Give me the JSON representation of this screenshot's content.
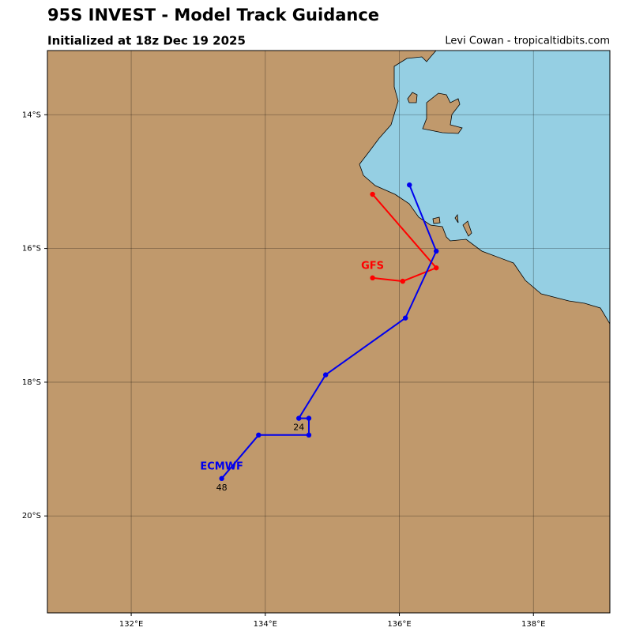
{
  "chart_data": {
    "type": "track",
    "title": "95S INVEST - Model Track Guidance",
    "subtitle": "Initialized at 18z Dec 19 2025",
    "credit": "Levi Cowan - tropicaltidbits.com",
    "xlim": [
      130.75,
      139.14
    ],
    "ylim": [
      -21.45,
      -13.04
    ],
    "xticks": [
      {
        "value": 132,
        "label": "132°E"
      },
      {
        "value": 134,
        "label": "134°E"
      },
      {
        "value": 136,
        "label": "136°E"
      },
      {
        "value": 138,
        "label": "138°E"
      }
    ],
    "yticks": [
      {
        "value": -14,
        "label": "14°S"
      },
      {
        "value": -16,
        "label": "16°S"
      },
      {
        "value": -18,
        "label": "18°S"
      },
      {
        "value": -20,
        "label": "20°S"
      }
    ],
    "grid": true,
    "series": [
      {
        "name": "GFS",
        "color": "#ff0000",
        "x": [
          135.6,
          136.55,
          136.05,
          135.6
        ],
        "values": [
          -15.19,
          -16.29,
          -16.49,
          -16.44
        ]
      },
      {
        "name": "ECMWF",
        "color": "#0000ee",
        "x": [
          136.15,
          136.55,
          136.09,
          134.9,
          134.5,
          134.65,
          134.65,
          133.9,
          133.35
        ],
        "values": [
          -15.05,
          -16.04,
          -17.04,
          -17.89,
          -18.54,
          -18.54,
          -18.79,
          -18.79,
          -19.44
        ],
        "point_labels": [
          null,
          null,
          null,
          null,
          "24",
          null,
          null,
          null,
          "48"
        ]
      }
    ]
  }
}
